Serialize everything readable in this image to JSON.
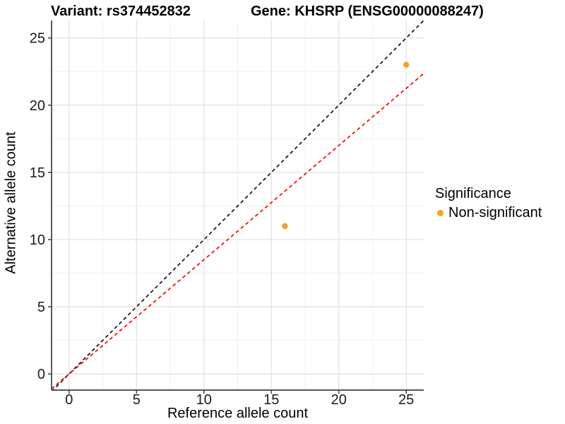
{
  "titles": {
    "variant": "Variant: rs374452832",
    "gene": "Gene: KHSRP (ENSG00000088247)"
  },
  "axes": {
    "x_label": "Reference allele count",
    "y_label": "Alternative allele count"
  },
  "legend": {
    "title": "Significance",
    "items": [
      {
        "label": "Non-significant",
        "color": "#F9A121"
      }
    ]
  },
  "colors": {
    "point": "#F9A121",
    "black_line": "#111111",
    "red_line": "#FF0000",
    "grid_major": "#E3E3E3",
    "grid_minor": "#F1F1F1",
    "axis": "#3F3F3F",
    "tick_text": "#1A1A1A"
  },
  "chart_data": {
    "type": "scatter",
    "title": "Variant: rs374452832    Gene: KHSRP (ENSG00000088247)",
    "xlabel": "Reference allele count",
    "ylabel": "Alternative allele count",
    "xlim": [
      -1.3,
      26.3
    ],
    "ylim": [
      -1.2,
      26.3
    ],
    "x_ticks": [
      0,
      5,
      10,
      15,
      20,
      25
    ],
    "y_ticks": [
      0,
      5,
      10,
      15,
      20,
      25
    ],
    "grid": true,
    "legend_position": "right",
    "series": [
      {
        "name": "Non-significant",
        "color": "#F9A121",
        "points": [
          {
            "x": 16,
            "y": 11
          },
          {
            "x": 25,
            "y": 23
          }
        ]
      }
    ],
    "lines": [
      {
        "name": "identity",
        "slope": 1,
        "intercept": 0,
        "color": "#111111",
        "dashed": true
      },
      {
        "name": "allelic-ratio",
        "slope": 0.85,
        "intercept": 0,
        "color": "#FF0000",
        "dashed": true
      }
    ]
  }
}
